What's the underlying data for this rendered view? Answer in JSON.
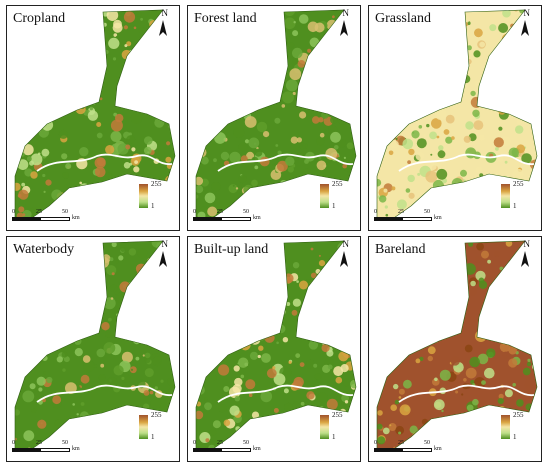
{
  "panels": [
    {
      "title": "Cropland",
      "scheme": "mixed"
    },
    {
      "title": "Forest land",
      "scheme": "green"
    },
    {
      "title": "Grassland",
      "scheme": "warm"
    },
    {
      "title": "Waterbody",
      "scheme": "green"
    },
    {
      "title": "Built-up land",
      "scheme": "mixed"
    },
    {
      "title": "Bareland",
      "scheme": "brown"
    }
  ],
  "north_label": "N",
  "legend": {
    "max": "255",
    "min": "1"
  },
  "scale": {
    "ticks": [
      "0",
      "25",
      "50"
    ],
    "unit": "km"
  },
  "colors": {
    "low": "#4f8f1f",
    "mid": "#f4e6a6",
    "high": "#a0522d"
  }
}
